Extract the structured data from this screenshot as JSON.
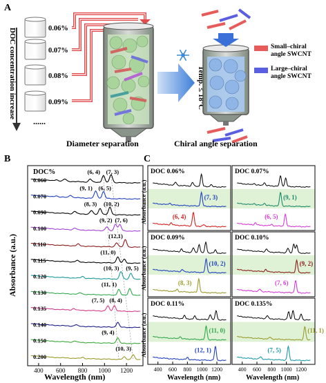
{
  "figure": {
    "panel_labels": {
      "a": "A",
      "b": "B",
      "c": "C"
    },
    "panel_a": {
      "y_title": "DOC concentration increase",
      "vial_labels": [
        "0.06%",
        "0.07%",
        "0.08%",
        "0.09%"
      ],
      "ellipsis": "......",
      "caption_left": "Diameter separation",
      "caption_right": "Chiral angle separation",
      "temp_label": "Temp. ≤ 18°C",
      "legend": [
        {
          "line1": "Small–chiral",
          "line2": "angle SWCNT",
          "color": "#e85b5b"
        },
        {
          "line1": "Large–chiral",
          "line2": "angle SWCNT",
          "color": "#5a5ee0"
        }
      ]
    },
    "panel_b": {
      "ylabel": "Absorbance (a.u.)",
      "xlabel": "Wavelength (nm)",
      "header": "DOC%",
      "x_ticks": [
        "400",
        "600",
        "800",
        "1000",
        "1200"
      ]
    },
    "panel_c": {
      "ylabel": "Absorbance (a.u.)",
      "xlabel": "Wavelength (nm)",
      "x_ticks": [
        "400",
        "600",
        "800",
        "1000",
        "1200"
      ],
      "boxes": [
        {
          "title": "DOC 0.06%",
          "labels": [
            "(7, 3)",
            "(6, 4)"
          ]
        },
        {
          "title": "DOC 0.07%",
          "labels": [
            "(9, 1)",
            "(6, 5)"
          ]
        },
        {
          "title": "DOC 0.09%",
          "labels": [
            "(10, 2)",
            "(8, 3)"
          ]
        },
        {
          "title": "DOC 0.10%",
          "labels": [
            "(9, 2)",
            "(7, 6)"
          ]
        },
        {
          "title": "DOC 0.11%",
          "labels": [
            "(11, 0)",
            "(12, 1)"
          ]
        },
        {
          "title": "DOC 0.135%",
          "labels": [
            "(11, 1)",
            "(7, 5)"
          ]
        }
      ]
    }
  },
  "chart_data": [
    {
      "type": "line",
      "panel": "B",
      "xlabel": "Wavelength (nm)",
      "ylabel": "Absorbance (a.u.)",
      "xlim": [
        300,
        1350
      ],
      "x_ticks": [
        400,
        600,
        800,
        1000,
        1200
      ],
      "series": [
        {
          "name": "0.060",
          "color": "#000000",
          "peaks": [
            [
              990,
              0.55
            ],
            [
              1060,
              0.65
            ],
            [
              870,
              0.25
            ],
            [
              640,
              0.18
            ],
            [
              560,
              0.1
            ]
          ],
          "annotations": [
            "(6, 4)",
            "(7, 3)"
          ]
        },
        {
          "name": "0.070",
          "color": "#1f3fbf",
          "peaks": [
            [
              920,
              0.6
            ],
            [
              990,
              0.55
            ],
            [
              690,
              0.2
            ],
            [
              560,
              0.1
            ]
          ],
          "annotations": [
            "(9, 1)",
            "(6, 5)"
          ]
        },
        {
          "name": "0.090",
          "color": "#000000",
          "peaks": [
            [
              960,
              0.5
            ],
            [
              1050,
              0.6
            ],
            [
              880,
              0.3
            ],
            [
              730,
              0.2
            ]
          ],
          "annotations": [
            "(8, 3)",
            "(10, 2)"
          ]
        },
        {
          "name": "0.100",
          "color": "#a33fd6",
          "peaks": [
            [
              1100,
              0.55
            ],
            [
              1140,
              0.5
            ],
            [
              1020,
              0.3
            ],
            [
              730,
              0.15
            ]
          ],
          "annotations": [
            "(9, 2)",
            "(7, 6)"
          ]
        },
        {
          "name": "0.110",
          "color": "#8b1a1a",
          "peaks": [
            [
              1190,
              0.6
            ],
            [
              1110,
              0.35
            ],
            [
              760,
              0.15
            ]
          ],
          "annotations": [
            "(12,1)"
          ]
        },
        {
          "name": "0.115",
          "color": "#000000",
          "peaks": [
            [
              1120,
              0.5
            ],
            [
              1180,
              0.3
            ],
            [
              750,
              0.12
            ]
          ],
          "annotations": [
            "(11, 0)"
          ]
        },
        {
          "name": "0.120",
          "color": "#1a9a9a",
          "peaks": [
            [
              1150,
              0.6
            ],
            [
              1240,
              0.5
            ],
            [
              800,
              0.15
            ]
          ],
          "annotations": [
            "(10, 3)",
            "(9, 5)"
          ]
        },
        {
          "name": "0.130",
          "color": "#2ea84a",
          "peaks": [
            [
              1130,
              0.45
            ],
            [
              1230,
              0.55
            ],
            [
              780,
              0.12
            ]
          ],
          "annotations": [
            "(11, 1)"
          ]
        },
        {
          "name": "0.135",
          "color": "#d63a8a",
          "peaks": [
            [
              1030,
              0.4
            ],
            [
              1090,
              0.45
            ],
            [
              720,
              0.12
            ]
          ],
          "annotations": [
            "(7, 5)",
            "(8, 4)"
          ]
        },
        {
          "name": "0.140",
          "color": "#1a1a8a",
          "peaks": [
            [
              1120,
              0.4
            ],
            [
              740,
              0.12
            ]
          ],
          "annotations": []
        },
        {
          "name": "0.150",
          "color": "#3aa83a",
          "peaks": [
            [
              1120,
              0.45
            ],
            [
              730,
              0.1
            ]
          ],
          "annotations": [
            "(9, 4)"
          ]
        },
        {
          "name": "0.200",
          "color": "#9a9a2a",
          "peaks": [
            [
              1260,
              0.4
            ],
            [
              1180,
              0.2
            ],
            [
              800,
              0.1
            ]
          ],
          "annotations": [
            "(10, 3)"
          ]
        }
      ]
    },
    {
      "type": "line",
      "panel": "C",
      "xlabel": "Wavelength (nm)",
      "ylabel": "Absorbance (a.u.)",
      "x_ticks": [
        400,
        600,
        800,
        1000,
        1200
      ],
      "boxes": [
        {
          "title": "DOC 0.06%",
          "top": [
            [
              990,
              0.8
            ],
            [
              870,
              0.25
            ],
            [
              640,
              0.2
            ],
            [
              1120,
              0.15
            ]
          ],
          "mid": {
            "label": "(7, 3)",
            "color": "#1f3fbf",
            "peaks": [
              [
                990,
                0.9
              ],
              [
                560,
                0.12
              ]
            ]
          },
          "bot": {
            "label": "(6, 4)",
            "color": "#d61f1f",
            "peaks": [
              [
                880,
                0.9
              ],
              [
                580,
                0.15
              ],
              [
                1020,
                0.1
              ]
            ]
          }
        },
        {
          "title": "DOC 0.07%",
          "top": [
            [
              920,
              0.7
            ],
            [
              990,
              0.55
            ],
            [
              700,
              0.2
            ],
            [
              560,
              0.1
            ]
          ],
          "mid": {
            "label": "(9, 1)",
            "color": "#1a8a6a",
            "peaks": [
              [
                920,
                0.9
              ],
              [
                700,
                0.15
              ],
              [
                560,
                0.1
              ]
            ]
          },
          "bot": {
            "label": "(6, 5)",
            "color": "#d63ad6",
            "peaks": [
              [
                985,
                0.8
              ],
              [
                580,
                0.15
              ],
              [
                800,
                0.1
              ]
            ]
          }
        },
        {
          "title": "DOC 0.09%",
          "top": [
            [
              960,
              0.55
            ],
            [
              1050,
              0.7
            ],
            [
              880,
              0.3
            ],
            [
              720,
              0.2
            ],
            [
              1180,
              0.2
            ]
          ],
          "mid": {
            "label": "(10, 2)",
            "color": "#1f3fbf",
            "peaks": [
              [
                1055,
                0.9
              ],
              [
                730,
                0.15
              ]
            ]
          },
          "bot": {
            "label": "(8, 3)",
            "color": "#9a9a2a",
            "peaks": [
              [
                955,
                0.9
              ],
              [
                660,
                0.15
              ]
            ]
          }
        },
        {
          "title": "DOC 0.10%",
          "top": [
            [
              1100,
              0.6
            ],
            [
              1140,
              0.5
            ],
            [
              1020,
              0.3
            ],
            [
              730,
              0.2
            ]
          ],
          "mid": {
            "label": "(9, 2)",
            "color": "#8b1a1a",
            "peaks": [
              [
                1140,
                0.8
              ],
              [
                720,
                0.15
              ]
            ]
          },
          "bot": {
            "label": "(7, 6)",
            "color": "#d63ad6",
            "peaks": [
              [
                1125,
                0.8
              ],
              [
                640,
                0.15
              ]
            ]
          }
        },
        {
          "title": "DOC 0.11%",
          "top": [
            [
              1190,
              0.6
            ],
            [
              1110,
              0.35
            ],
            [
              900,
              0.2
            ],
            [
              760,
              0.2
            ]
          ],
          "mid": {
            "label": "(11, 0)",
            "color": "#2ea84a",
            "peaks": [
              [
                1055,
                0.9
              ],
              [
                700,
                0.15
              ]
            ]
          },
          "bot": {
            "label": "(12, 1)",
            "color": "#1f3fbf",
            "peaks": [
              [
                1180,
                0.9
              ],
              [
                800,
                0.15
              ]
            ]
          }
        },
        {
          "title": "DOC 0.135%",
          "top": [
            [
              1030,
              0.5
            ],
            [
              1090,
              0.6
            ],
            [
              1200,
              0.4
            ],
            [
              740,
              0.2
            ]
          ],
          "mid": {
            "label": "(11, 1)",
            "color": "#9a9a2a",
            "peaks": [
              [
                1250,
                0.9
              ],
              [
                780,
                0.12
              ]
            ]
          },
          "bot": {
            "label": "(7, 5)",
            "color": "#1a9aaa",
            "peaks": [
              [
                1025,
                0.9
              ],
              [
                650,
                0.15
              ]
            ]
          }
        }
      ]
    }
  ]
}
